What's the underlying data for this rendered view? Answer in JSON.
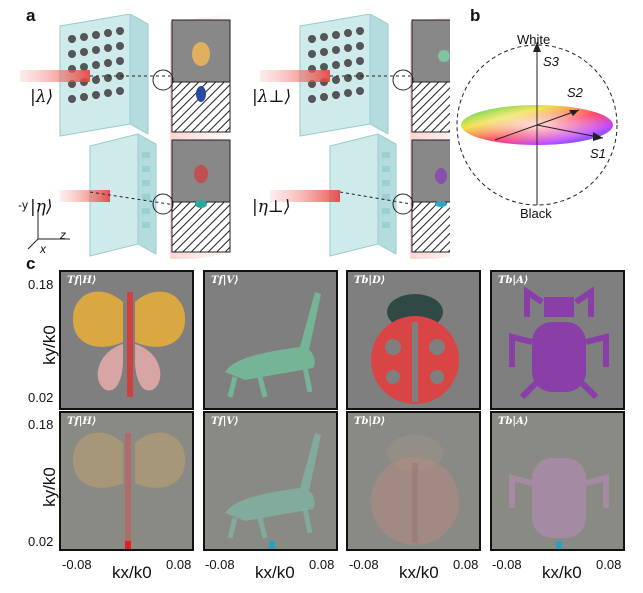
{
  "panel_labels": {
    "a": "a",
    "b": "b",
    "c": "c"
  },
  "panel_a": {
    "kets": [
      "|λ⟩",
      "|λ⊥⟩",
      "|η⟩",
      "|η⊥⟩"
    ],
    "axes": {
      "y": "-y",
      "z": "z",
      "x": "x"
    }
  },
  "panel_b": {
    "white": "White",
    "black": "Black",
    "s1": "S1",
    "s2": "S2",
    "s3": "S3"
  },
  "panel_c": {
    "titles": [
      "Tf|H⟩",
      "Tf|V⟩",
      "Tb|D⟩",
      "Tb|A⟩"
    ],
    "ylabel": "ky/k0",
    "xlabel": "kx/k0",
    "ytick_top": "0.18",
    "ytick_bottom": "0.02",
    "xtick_left": "-0.08",
    "xtick_right": "0.08",
    "shapes": [
      "butterfly",
      "grasshopper",
      "ladybug",
      "beetle"
    ]
  },
  "colors": {
    "glass": "#bfe3e6",
    "beam": "#e8403a",
    "panel_bg": "#7f7f7f"
  }
}
